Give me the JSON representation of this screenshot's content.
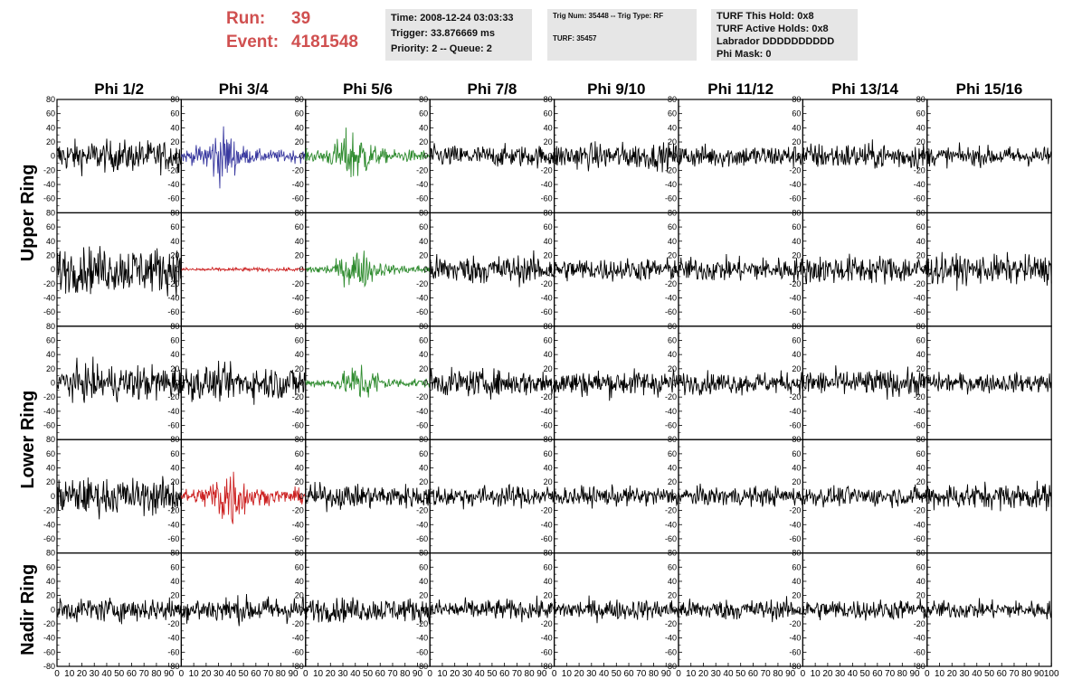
{
  "header": {
    "run_label": "Run:",
    "run_value": "39",
    "event_label": "Event:",
    "event_value": "4181548"
  },
  "info_time": {
    "time": "Time: 2008-12-24 03:03:33",
    "trigger": "Trigger: 33.876669 ms",
    "priority": "Priority: 2 -- Queue: 2"
  },
  "info_trig": {
    "trig": "Trig Num: 35448 -- Trig Type: RF",
    "turf": "TURF: 35457"
  },
  "info_turf": {
    "hold": "TURF This Hold: 0x8",
    "active": "TURF Active Holds: 0x8",
    "labrador": "Labrador DDDDDDDDDD",
    "phimask": "Phi Mask: 0"
  },
  "chart_data": {
    "type": "line",
    "columns": [
      "Phi 1/2",
      "Phi 3/4",
      "Phi 5/6",
      "Phi 7/8",
      "Phi 9/10",
      "Phi 11/12",
      "Phi 13/14",
      "Phi 15/16"
    ],
    "ring_labels": [
      "Upper Ring",
      "Lower Ring",
      "Nadir Ring"
    ],
    "ylim": [
      -80,
      80
    ],
    "yticks": [
      -80,
      -60,
      -40,
      -20,
      0,
      20,
      40,
      60,
      80
    ],
    "xlim": [
      0,
      100
    ],
    "xticks": [
      0,
      10,
      20,
      30,
      40,
      50,
      60,
      70,
      80,
      90,
      100
    ],
    "grid": false,
    "colors": {
      "default": "#000000",
      "blue": "#3a3aa0",
      "green": "#2e8b2e",
      "red": "#cc2020"
    },
    "panels": [
      [
        {
          "color": "default",
          "amp": 26,
          "env": "flat"
        },
        {
          "color": "blue",
          "amp": 30,
          "env": "burst",
          "peak": 32
        },
        {
          "color": "green",
          "amp": 30,
          "env": "burst",
          "peak": 38
        },
        {
          "color": "default",
          "amp": 18,
          "env": "flat"
        },
        {
          "color": "default",
          "amp": 22,
          "env": "flat"
        },
        {
          "color": "default",
          "amp": 19,
          "env": "flat"
        },
        {
          "color": "default",
          "amp": 22,
          "env": "flat"
        },
        {
          "color": "default",
          "amp": 16,
          "env": "flat"
        }
      ],
      [
        {
          "color": "default",
          "amp": 38,
          "env": "flat"
        },
        {
          "color": "red",
          "amp": 3,
          "env": "flat"
        },
        {
          "color": "green",
          "amp": 22,
          "env": "burst",
          "peak": 42
        },
        {
          "color": "default",
          "amp": 24,
          "env": "flat"
        },
        {
          "color": "default",
          "amp": 19,
          "env": "flat"
        },
        {
          "color": "default",
          "amp": 20,
          "env": "flat"
        },
        {
          "color": "default",
          "amp": 24,
          "env": "flat"
        },
        {
          "color": "default",
          "amp": 24,
          "env": "flat"
        }
      ],
      [
        {
          "color": "default",
          "amp": 30,
          "env": "flat"
        },
        {
          "color": "default",
          "amp": 28,
          "env": "flat"
        },
        {
          "color": "green",
          "amp": 22,
          "env": "burst",
          "peak": 45
        },
        {
          "color": "default",
          "amp": 22,
          "env": "flat"
        },
        {
          "color": "default",
          "amp": 22,
          "env": "flat"
        },
        {
          "color": "default",
          "amp": 18,
          "env": "flat"
        },
        {
          "color": "default",
          "amp": 22,
          "env": "flat"
        },
        {
          "color": "default",
          "amp": 16,
          "env": "flat"
        }
      ],
      [
        {
          "color": "default",
          "amp": 30,
          "env": "flat"
        },
        {
          "color": "red",
          "amp": 35,
          "env": "burst",
          "peak": 38
        },
        {
          "color": "default",
          "amp": 20,
          "env": "flat"
        },
        {
          "color": "default",
          "amp": 18,
          "env": "flat"
        },
        {
          "color": "default",
          "amp": 16,
          "env": "flat"
        },
        {
          "color": "default",
          "amp": 16,
          "env": "flat"
        },
        {
          "color": "default",
          "amp": 16,
          "env": "flat"
        },
        {
          "color": "default",
          "amp": 22,
          "env": "flat"
        }
      ],
      [
        {
          "color": "default",
          "amp": 20,
          "env": "flat"
        },
        {
          "color": "default",
          "amp": 22,
          "env": "flat"
        },
        {
          "color": "default",
          "amp": 20,
          "env": "flat"
        },
        {
          "color": "default",
          "amp": 17,
          "env": "flat"
        },
        {
          "color": "default",
          "amp": 17,
          "env": "flat"
        },
        {
          "color": "default",
          "amp": 17,
          "env": "flat"
        },
        {
          "color": "default",
          "amp": 17,
          "env": "flat"
        },
        {
          "color": "default",
          "amp": 15,
          "env": "flat"
        }
      ]
    ]
  }
}
